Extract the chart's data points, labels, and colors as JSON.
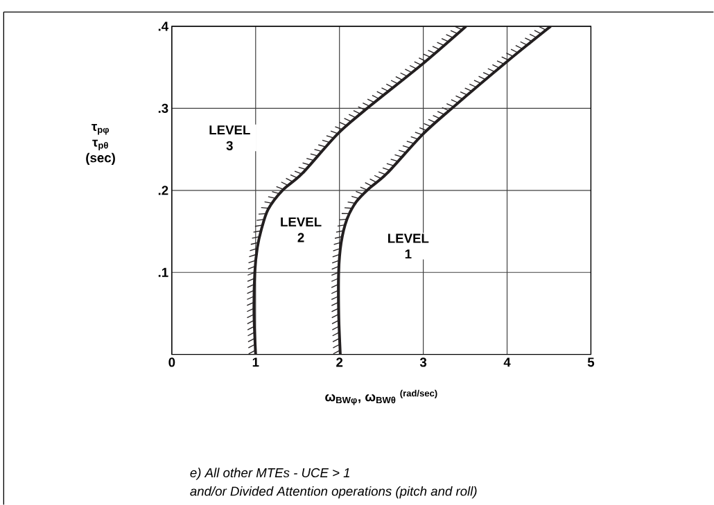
{
  "chart_data": {
    "type": "line",
    "xlabel": "ω$_{BWφ}$, ω$_{BWθ}$ $^{(rad/sec)}$",
    "ylabel": "τ$_{pφ}$ τ$_{pθ}$ (sec)",
    "xlim": [
      0,
      5
    ],
    "ylim": [
      0,
      0.4
    ],
    "xticks": [
      0,
      1,
      2,
      3,
      4,
      5
    ],
    "yticks": [
      {
        "value": 0.1,
        "label": ".1"
      },
      {
        "value": 0.2,
        "label": ".2"
      },
      {
        "value": 0.3,
        "label": ".3"
      },
      {
        "value": 0.4,
        "label": ".4"
      }
    ],
    "grid": true,
    "series": [
      {
        "color": "#231f20",
        "x": [
          1.0,
          0.98,
          0.99,
          1.02,
          1.07,
          1.15,
          1.32,
          1.56,
          1.97,
          2.33,
          2.99,
          3.51
        ],
        "values": [
          0,
          0.052,
          0.1,
          0.13,
          0.153,
          0.177,
          0.2,
          0.221,
          0.268,
          0.3,
          0.354,
          0.4
        ]
      },
      {
        "color": "#231f20",
        "x": [
          2.01,
          1.99,
          1.99,
          2.02,
          2.09,
          2.2,
          2.35,
          2.57,
          2.99,
          3.34,
          4.01,
          4.52
        ],
        "values": [
          0,
          0.052,
          0.1,
          0.136,
          0.165,
          0.186,
          0.202,
          0.221,
          0.268,
          0.3,
          0.358,
          0.4
        ]
      }
    ],
    "annotations": [
      "LEVEL 3",
      "LEVEL 2",
      "LEVEL 1",
      "e)  All other MTEs - UCE > 1",
      "and/or Divided Attention operations (pitch and roll)"
    ]
  }
}
